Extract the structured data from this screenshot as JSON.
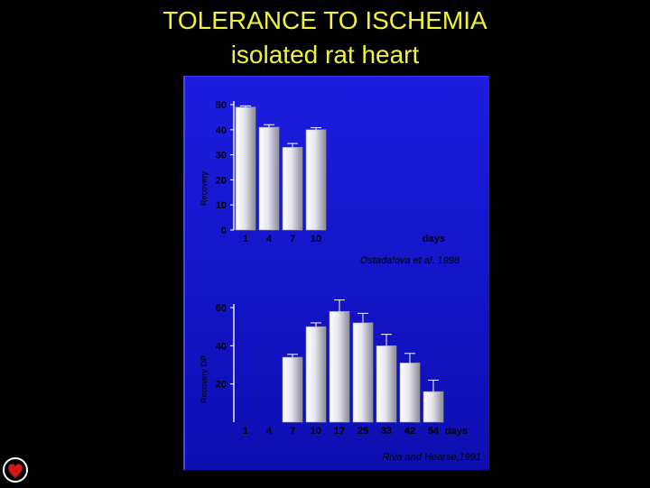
{
  "title_line1": "TOLERANCE TO ISCHEMIA",
  "title_line2": "isolated rat heart",
  "chart_data": [
    {
      "type": "bar",
      "categories": [
        "1",
        "4",
        "7",
        "10"
      ],
      "values": [
        49,
        41,
        33,
        40
      ],
      "error": [
        0.5,
        1,
        1.5,
        0.8
      ],
      "ylim": [
        0,
        50
      ],
      "yticks": [
        "50",
        "40",
        "30",
        "20",
        "10",
        "0"
      ],
      "ylabel": "Recovery",
      "xunit": "days",
      "source": "Ostadalova et al, 1998"
    },
    {
      "type": "bar",
      "categories": [
        "1",
        "4",
        "7",
        "10",
        "17",
        "25",
        "33",
        "42",
        "54"
      ],
      "values": [
        0,
        0,
        34,
        50,
        58,
        52,
        40,
        31,
        16
      ],
      "error": [
        0,
        0,
        1.5,
        2,
        6,
        5,
        6,
        5,
        6
      ],
      "ylim": [
        0,
        60
      ],
      "yticks": [
        "60",
        "40",
        "20"
      ],
      "ylabel": "Recovery DP",
      "xunit": "days",
      "source": "Riva and Hearse,1991"
    }
  ],
  "colors": {
    "title": "#f2f23a",
    "panel": "#1717d0",
    "bar_light": "#ffffff",
    "bar_dark": "#8a8a9a",
    "axis": "#e8e8ff",
    "label": "#000000",
    "logo_heart": "#d01818"
  },
  "icon": "heart-logo-icon"
}
